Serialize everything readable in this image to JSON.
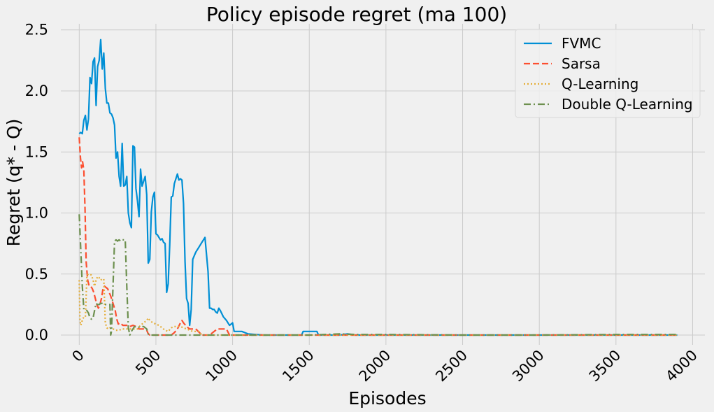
{
  "chart_data": {
    "type": "line",
    "title": "Policy episode regret (ma 100)",
    "xlabel": "Episodes",
    "ylabel": "Regret (q* - Q)",
    "xlim": [
      -120,
      4080
    ],
    "ylim": [
      -0.08,
      2.55
    ],
    "xticks": [
      0,
      500,
      1000,
      1500,
      2000,
      2500,
      3000,
      3500,
      4000
    ],
    "xtick_labels": [
      "0",
      "500",
      "1000",
      "1500",
      "2000",
      "2500",
      "3000",
      "3500",
      "4000"
    ],
    "yticks": [
      0.0,
      0.5,
      1.0,
      1.5,
      2.0,
      2.5
    ],
    "ytick_labels": [
      "0.0",
      "0.5",
      "1.0",
      "1.5",
      "2.0",
      "2.5"
    ],
    "grid": true,
    "legend_position": "top-right",
    "series": [
      {
        "name": "FVMC",
        "color": "#008fd5",
        "dash": "solid",
        "x": [
          0,
          10,
          20,
          30,
          40,
          50,
          60,
          70,
          80,
          90,
          100,
          110,
          120,
          130,
          140,
          150,
          160,
          170,
          180,
          190,
          200,
          210,
          220,
          230,
          240,
          250,
          260,
          270,
          280,
          290,
          300,
          310,
          320,
          330,
          340,
          350,
          360,
          370,
          380,
          390,
          400,
          410,
          420,
          430,
          440,
          450,
          460,
          470,
          480,
          490,
          500,
          510,
          520,
          530,
          540,
          550,
          560,
          570,
          580,
          590,
          600,
          610,
          620,
          630,
          640,
          650,
          660,
          670,
          680,
          690,
          700,
          710,
          720,
          730,
          740,
          750,
          760,
          780,
          800,
          820,
          840,
          850,
          860,
          870,
          880,
          890,
          900,
          910,
          920,
          940,
          960,
          980,
          1000,
          1010,
          1020,
          1060,
          1080,
          1100,
          1150,
          1200,
          1300,
          1400,
          1450,
          1460,
          1480,
          1500,
          1550,
          1560,
          1600,
          1700,
          1750,
          1800,
          2000,
          2500,
          3000,
          3500,
          3900
        ],
        "y": [
          1.65,
          1.66,
          1.65,
          1.76,
          1.8,
          1.68,
          1.77,
          2.11,
          2.06,
          2.24,
          2.27,
          1.88,
          2.2,
          2.25,
          2.42,
          2.18,
          2.31,
          2.02,
          1.9,
          1.9,
          1.82,
          1.81,
          1.78,
          1.72,
          1.45,
          1.5,
          1.3,
          1.22,
          1.57,
          1.22,
          1.23,
          1.3,
          1.0,
          0.92,
          0.88,
          1.55,
          1.54,
          1.2,
          1.1,
          0.97,
          1.36,
          1.22,
          1.26,
          1.3,
          1.15,
          0.59,
          0.62,
          1.01,
          1.13,
          1.17,
          0.83,
          0.82,
          0.8,
          0.78,
          0.79,
          0.76,
          0.75,
          0.35,
          0.42,
          0.74,
          1.13,
          1.14,
          1.24,
          1.28,
          1.32,
          1.27,
          1.28,
          1.27,
          1.08,
          0.6,
          0.3,
          0.26,
          0.08,
          0.21,
          0.62,
          0.65,
          0.68,
          0.72,
          0.76,
          0.8,
          0.52,
          0.22,
          0.22,
          0.21,
          0.21,
          0.19,
          0.18,
          0.22,
          0.2,
          0.15,
          0.12,
          0.08,
          0.1,
          0.03,
          0.03,
          0.03,
          0.02,
          0.01,
          0.005,
          0.0,
          0.0,
          0.0,
          0.0,
          0.03,
          0.03,
          0.03,
          0.03,
          0.0,
          0.0,
          0.0,
          0.01,
          0.0,
          0.0,
          0.0,
          0.0,
          0.0,
          0.0
        ]
      },
      {
        "name": "Sarsa",
        "color": "#fc4f30",
        "dash": "dashed",
        "x": [
          0,
          8,
          15,
          22,
          30,
          38,
          45,
          55,
          65,
          75,
          85,
          95,
          105,
          115,
          125,
          135,
          145,
          155,
          165,
          175,
          185,
          195,
          205,
          215,
          225,
          235,
          245,
          255,
          265,
          275,
          285,
          295,
          310,
          330,
          350,
          370,
          380,
          390,
          400,
          420,
          440,
          450,
          460,
          480,
          500,
          520,
          540,
          560,
          580,
          600,
          620,
          640,
          660,
          670,
          680,
          700,
          720,
          740,
          760,
          800,
          850,
          900,
          920,
          960,
          980,
          1000,
          1100,
          1500,
          2000,
          3000,
          3900
        ],
        "y": [
          1.62,
          1.45,
          1.37,
          1.42,
          1.35,
          1.03,
          0.6,
          0.45,
          0.4,
          0.4,
          0.38,
          0.35,
          0.3,
          0.25,
          0.22,
          0.25,
          0.3,
          0.38,
          0.4,
          0.39,
          0.38,
          0.35,
          0.32,
          0.28,
          0.24,
          0.2,
          0.13,
          0.09,
          0.1,
          0.09,
          0.08,
          0.08,
          0.08,
          0.07,
          0.08,
          0.07,
          0.06,
          0.05,
          0.05,
          0.05,
          0.04,
          0.01,
          0.0,
          0.0,
          0.0,
          0.0,
          0.0,
          0.0,
          0.0,
          0.0,
          0.02,
          0.05,
          0.1,
          0.12,
          0.1,
          0.07,
          0.05,
          0.05,
          0.05,
          0.0,
          0.0,
          0.05,
          0.05,
          0.05,
          0.0,
          0.0,
          0.0,
          0.0,
          0.0,
          0.0,
          0.0
        ]
      },
      {
        "name": "Q-Learning",
        "color": "#e5ae38",
        "dash": "dotted",
        "x": [
          0,
          5,
          10,
          20,
          30,
          40,
          50,
          60,
          70,
          80,
          90,
          100,
          110,
          120,
          130,
          140,
          150,
          160,
          170,
          180,
          190,
          200,
          220,
          240,
          260,
          280,
          300,
          320,
          340,
          360,
          380,
          400,
          420,
          440,
          450,
          460,
          470,
          480,
          500,
          520,
          540,
          560,
          580,
          600,
          620,
          640,
          660,
          680,
          700,
          720,
          740,
          760,
          780,
          800,
          850,
          900,
          1000,
          1500,
          2000,
          3000,
          3900
        ],
        "y": [
          0.45,
          0.12,
          0.08,
          0.12,
          0.15,
          0.15,
          0.49,
          0.5,
          0.5,
          0.49,
          0.45,
          0.4,
          0.45,
          0.48,
          0.47,
          0.45,
          0.46,
          0.46,
          0.1,
          0.06,
          0.05,
          0.06,
          0.05,
          0.04,
          0.04,
          0.05,
          0.05,
          0.05,
          0.05,
          0.05,
          0.05,
          0.08,
          0.1,
          0.12,
          0.14,
          0.12,
          0.11,
          0.1,
          0.09,
          0.08,
          0.06,
          0.04,
          0.03,
          0.06,
          0.07,
          0.07,
          0.07,
          0.06,
          0.05,
          0.04,
          0.03,
          0.03,
          0.03,
          0.0,
          0.0,
          0.0,
          0.0,
          0.0,
          0.0,
          0.0,
          0.0
        ]
      },
      {
        "name": "Double Q-Learning",
        "color": "#6d904f",
        "dash": "dashdot",
        "x": [
          0,
          10,
          20,
          30,
          40,
          50,
          60,
          70,
          80,
          90,
          100,
          110,
          120,
          130,
          140,
          150,
          160,
          170,
          180,
          190,
          200,
          205,
          210,
          220,
          230,
          240,
          250,
          260,
          270,
          280,
          290,
          300,
          310,
          320,
          330,
          340,
          350,
          360,
          380,
          400,
          420,
          440,
          450,
          460,
          500,
          600,
          700,
          800,
          900,
          1000,
          1500,
          1700,
          1800,
          2000,
          2500,
          3000,
          3500,
          3900
        ],
        "y": [
          0.99,
          0.7,
          0.4,
          0.21,
          0.21,
          0.2,
          0.18,
          0.14,
          0.13,
          0.14,
          0.2,
          0.26,
          0.25,
          0.25,
          0.26,
          0.26,
          0.25,
          0.25,
          0.25,
          0.25,
          0.25,
          0.0,
          0.03,
          0.4,
          0.77,
          0.78,
          0.77,
          0.78,
          0.77,
          0.78,
          0.78,
          0.78,
          0.4,
          0.06,
          0.0,
          0.03,
          0.05,
          0.07,
          0.06,
          0.07,
          0.07,
          0.05,
          0.01,
          0.0,
          0.0,
          0.0,
          0.0,
          0.0,
          0.0,
          0.0,
          0.0,
          0.01,
          0.005,
          0.005,
          0.0,
          0.0,
          0.005,
          0.005
        ]
      }
    ]
  }
}
